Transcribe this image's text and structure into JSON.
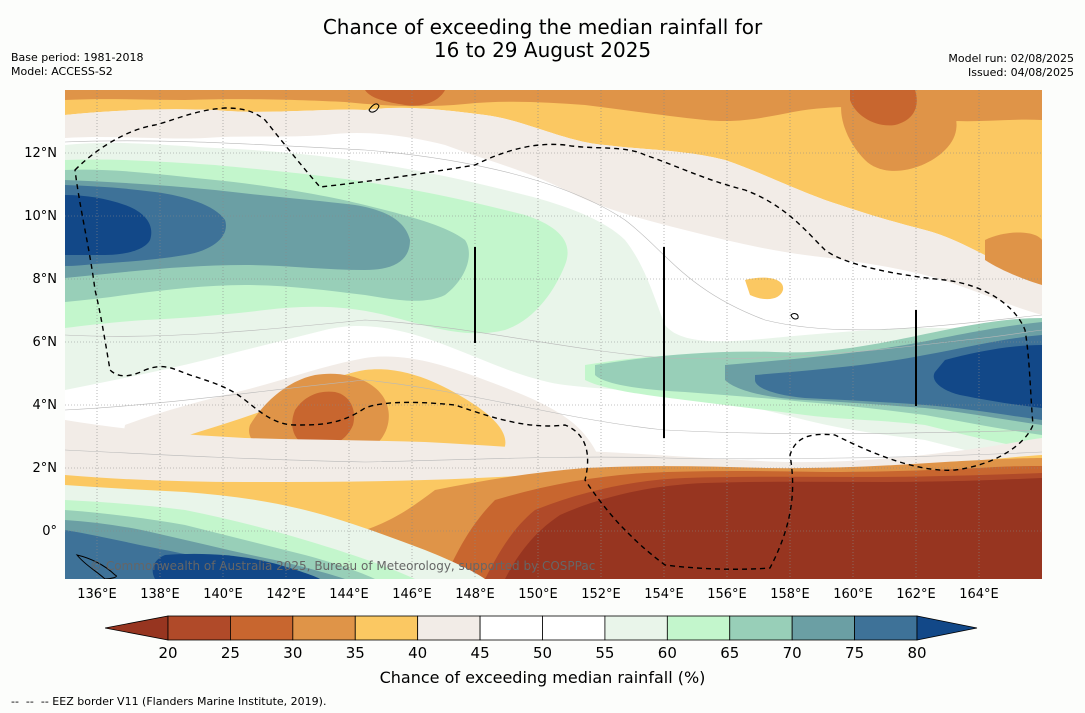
{
  "title": {
    "line1": "Chance of exceeding the median rainfall for",
    "line2": "16 to 29 August 2025"
  },
  "meta_left": {
    "base_period": "Base period: 1981-2018",
    "model": "Model: ACCESS-S2"
  },
  "meta_right": {
    "model_run": "Model run: 02/08/2025",
    "issued": "Issued: 04/08/2025"
  },
  "map": {
    "lat_labels": [
      "12°N",
      "10°N",
      "8°N",
      "6°N",
      "4°N",
      "2°N",
      "0°"
    ],
    "lat_values": [
      12,
      10,
      8,
      6,
      4,
      2,
      0
    ],
    "lon_labels": [
      "136°E",
      "138°E",
      "140°E",
      "142°E",
      "144°E",
      "146°E",
      "148°E",
      "150°E",
      "152°E",
      "154°E",
      "156°E",
      "158°E",
      "160°E",
      "162°E",
      "164°E"
    ],
    "lon_values": [
      136,
      138,
      140,
      142,
      144,
      146,
      148,
      150,
      152,
      154,
      156,
      158,
      160,
      162,
      164
    ],
    "lon_range": [
      135,
      166
    ],
    "lat_range": [
      -1.5,
      14
    ],
    "copyright": "© Commonwealth of Australia 2025, Bureau of Meteorology, supported by COSPPac",
    "gridlines": "on"
  },
  "colorbar": {
    "ticks": [
      "20",
      "25",
      "30",
      "35",
      "40",
      "45",
      "50",
      "55",
      "60",
      "65",
      "70",
      "75",
      "80"
    ],
    "colors": [
      "#973520",
      "#b04a29",
      "#c8662f",
      "#df9448",
      "#fbc862",
      "#f2ece7",
      "#ffffff",
      "#ffffff",
      "#e9f5ea",
      "#c3f6cc",
      "#98cfb8",
      "#6b9fa4",
      "#3e7298",
      "#124888"
    ],
    "label": "Chance of exceeding median rainfall (%)"
  },
  "footnote": "--  --  -- EEZ border V11 (Flanders Marine Institute, 2019)."
}
